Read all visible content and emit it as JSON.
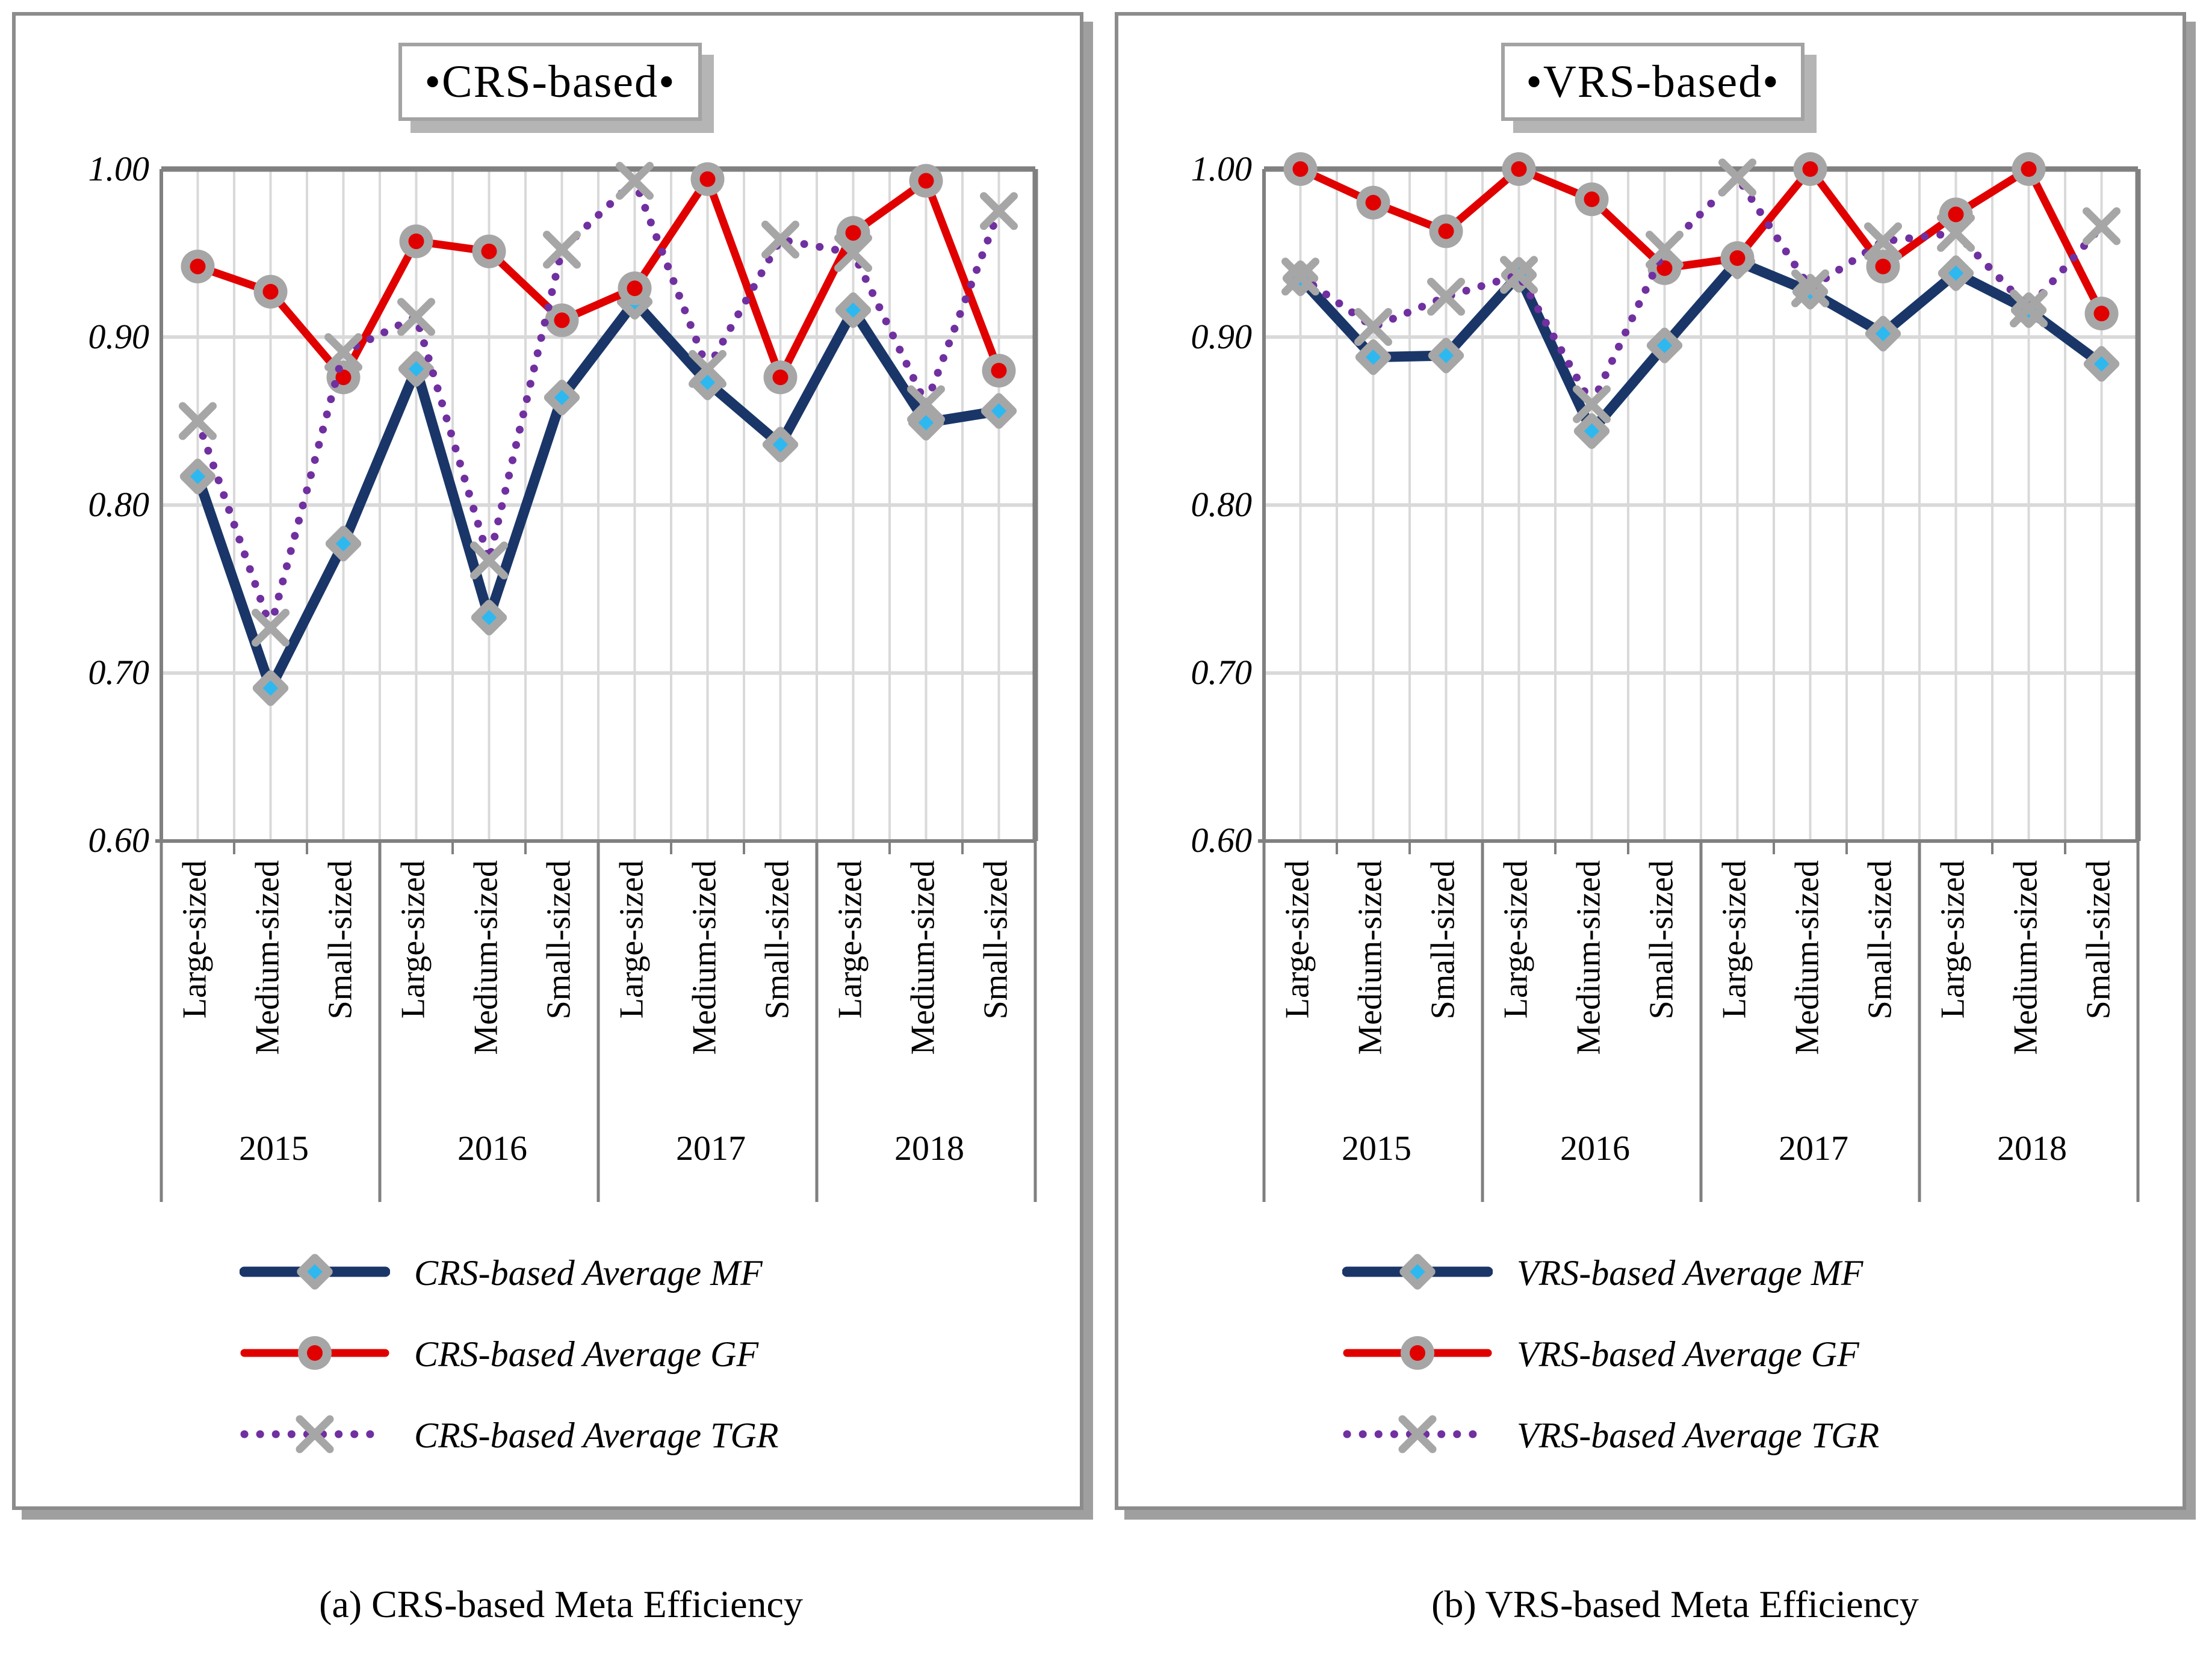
{
  "figure": {
    "caption_a": "(a) CRS-based Meta Efficiency",
    "caption_b": "(b) VRS-based Meta Efficiency"
  },
  "axis": {
    "yticks": [
      "1.00",
      "0.90",
      "0.80",
      "0.70",
      "0.60"
    ],
    "ymin": 0.6,
    "ymax": 1.0
  },
  "years": [
    "2015",
    "2016",
    "2017",
    "2018"
  ],
  "sizes": [
    "Large-sized",
    "Medium-sized",
    "Small-sized"
  ],
  "colors": {
    "mf_line": "#1a3668",
    "gf_line": "#e00000",
    "tgr_line": "#7030a0",
    "marker_gray": "#a6a6a6",
    "marker_cyan": "#2eb8f0",
    "marker_red": "#e00000",
    "grid_light": "#d9d9d9",
    "axis_gray": "#808080"
  },
  "panels": [
    {
      "title": "•CRS-based•",
      "legend": [
        {
          "series": "mf",
          "label": "CRS-based Average MF"
        },
        {
          "series": "gf",
          "label": "CRS-based Average GF"
        },
        {
          "series": "tgr",
          "label": "CRS-based Average TGR"
        }
      ]
    },
    {
      "title": "•VRS-based•",
      "legend": [
        {
          "series": "mf",
          "label": "VRS-based Average MF"
        },
        {
          "series": "gf",
          "label": "VRS-based Average GF"
        },
        {
          "series": "tgr",
          "label": "VRS-based Average TGR"
        }
      ]
    }
  ],
  "chart_data": [
    {
      "type": "line",
      "title": "•CRS-based•",
      "categories": [
        "Large-sized",
        "Medium-sized",
        "Small-sized",
        "Large-sized",
        "Medium-sized",
        "Small-sized",
        "Large-sized",
        "Medium-sized",
        "Small-sized",
        "Large-sized",
        "Medium-sized",
        "Small-sized"
      ],
      "year_groups": [
        "2015",
        "2016",
        "2017",
        "2018"
      ],
      "ylim": [
        0.6,
        1.0
      ],
      "yticks": [
        1.0,
        0.9,
        0.8,
        0.7,
        0.6
      ],
      "grid": "on",
      "legend_position": "bottom",
      "series": [
        {
          "name": "CRS-based Average MF",
          "key": "mf",
          "values": [
            0.817,
            0.691,
            0.777,
            0.881,
            0.733,
            0.864,
            0.921,
            0.873,
            0.836,
            0.916,
            0.849,
            0.856
          ]
        },
        {
          "name": "CRS-based Average GF",
          "key": "gf",
          "values": [
            0.942,
            0.927,
            0.876,
            0.957,
            0.951,
            0.91,
            0.929,
            0.994,
            0.876,
            0.962,
            0.993,
            0.88
          ]
        },
        {
          "name": "CRS-based Average TGR",
          "key": "tgr",
          "values": [
            0.85,
            0.727,
            0.891,
            0.912,
            0.767,
            0.952,
            0.993,
            0.881,
            0.958,
            0.95,
            0.86,
            0.975
          ]
        }
      ]
    },
    {
      "type": "line",
      "title": "•VRS-based•",
      "categories": [
        "Large-sized",
        "Medium-sized",
        "Small-sized",
        "Large-sized",
        "Medium-sized",
        "Small-sized",
        "Large-sized",
        "Medium-sized",
        "Small-sized",
        "Large-sized",
        "Medium-sized",
        "Small-sized"
      ],
      "year_groups": [
        "2015",
        "2016",
        "2017",
        "2018"
      ],
      "ylim": [
        0.6,
        1.0
      ],
      "yticks": [
        1.0,
        0.9,
        0.8,
        0.7,
        0.6
      ],
      "grid": "on",
      "legend_position": "bottom",
      "series": [
        {
          "name": "VRS-based Average MF",
          "key": "mf",
          "values": [
            0.935,
            0.888,
            0.889,
            0.937,
            0.844,
            0.895,
            0.945,
            0.927,
            0.902,
            0.938,
            0.916,
            0.884
          ]
        },
        {
          "name": "VRS-based Average GF",
          "key": "gf",
          "values": [
            1.0,
            0.98,
            0.963,
            1.0,
            0.982,
            0.941,
            0.947,
            1.0,
            0.942,
            0.973,
            1.0,
            0.914
          ]
        },
        {
          "name": "VRS-based Average TGR",
          "key": "tgr",
          "values": [
            0.936,
            0.906,
            0.924,
            0.937,
            0.86,
            0.952,
            0.995,
            0.929,
            0.957,
            0.962,
            0.917,
            0.966
          ]
        }
      ]
    }
  ]
}
